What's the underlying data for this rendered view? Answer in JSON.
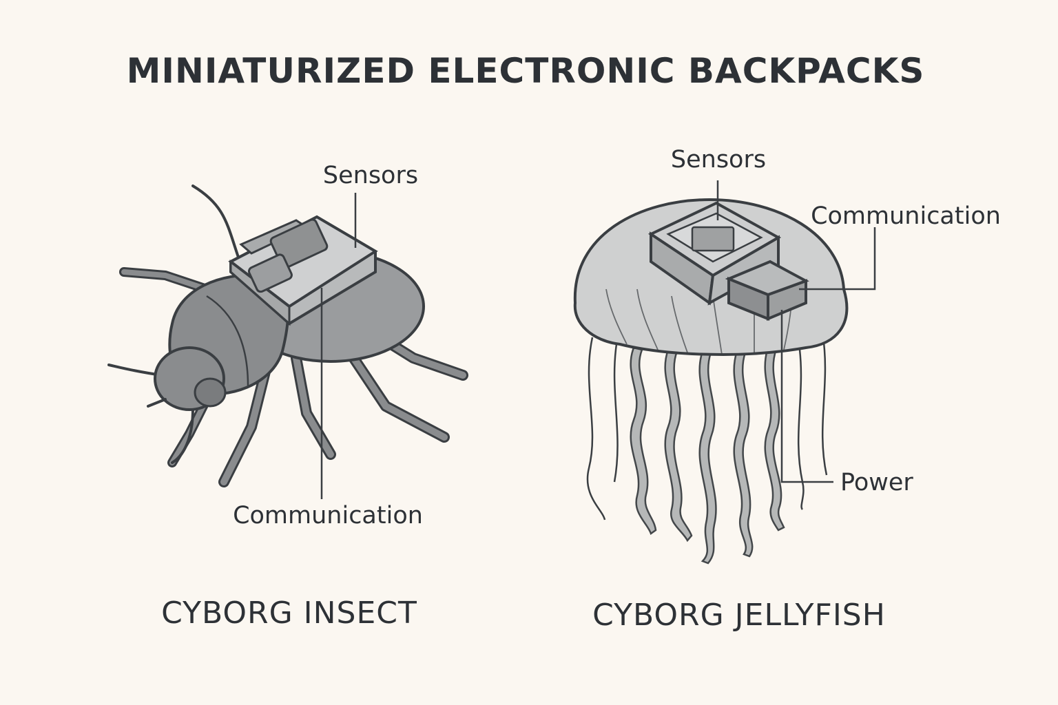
{
  "title": "MINIATURIZED ELECTRONIC BACKPACKS",
  "insect": {
    "caption": "CYBORG INSECT",
    "labels": {
      "sensors": "Sensors",
      "communication": "Communication"
    }
  },
  "jellyfish": {
    "caption": "CYBORG JELLYFISH",
    "labels": {
      "sensors": "Sensors",
      "communication": "Communication",
      "power": "Power"
    }
  },
  "colors": {
    "background": "#fbf7f1",
    "ink": "#3a3e42",
    "body_gray": "#8a8c8e",
    "module_gray": "#c9cacb",
    "jelly_bell": "#cfd0d0"
  }
}
